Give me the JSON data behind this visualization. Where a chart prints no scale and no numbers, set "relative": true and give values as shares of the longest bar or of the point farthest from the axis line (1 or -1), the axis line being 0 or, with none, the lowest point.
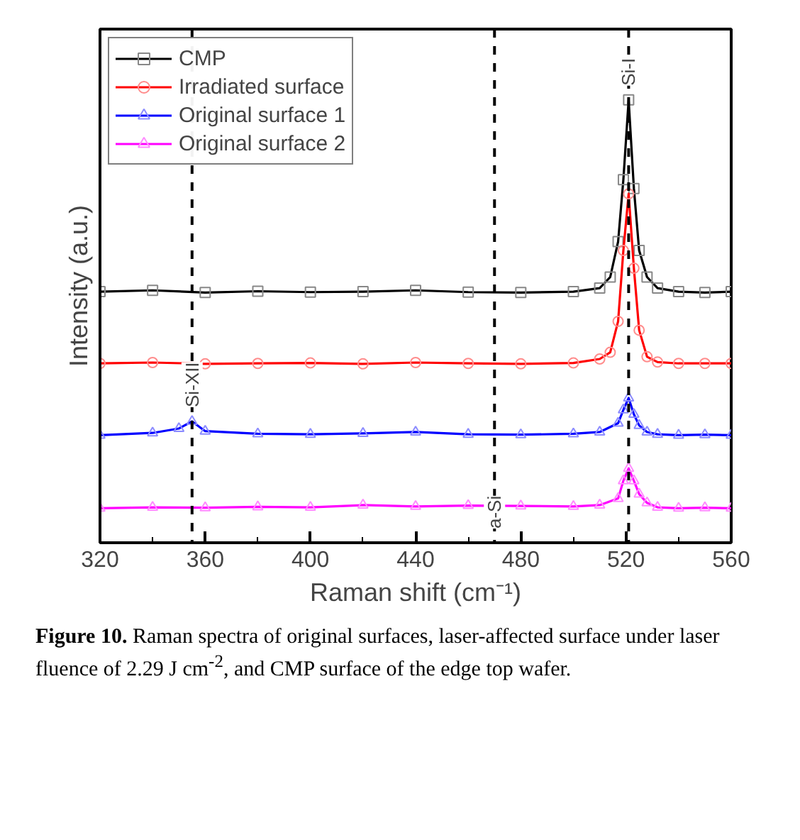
{
  "chart_data": {
    "type": "line",
    "relative": true,
    "xlabel": "Raman shift (cm⁻¹)",
    "ylabel": "Intensity (a.u.)",
    "xlim": [
      320,
      560
    ],
    "xticks": [
      320,
      360,
      400,
      440,
      480,
      520,
      560
    ],
    "grid": false,
    "legend": "top left",
    "line_style": "solid",
    "series": [
      {
        "name": "CMP",
        "color": "#000000",
        "marker": "square",
        "x": [
          320,
          340,
          360,
          380,
          400,
          420,
          440,
          460,
          480,
          500,
          510,
          514,
          517,
          519,
          521,
          523,
          525,
          528,
          532,
          540,
          550,
          560
        ],
        "values": [
          0.567,
          0.57,
          0.565,
          0.568,
          0.566,
          0.567,
          0.57,
          0.566,
          0.565,
          0.567,
          0.575,
          0.6,
          0.68,
          0.82,
          1.0,
          0.8,
          0.66,
          0.6,
          0.575,
          0.567,
          0.565,
          0.567
        ]
      },
      {
        "name": "Irradiated surface",
        "color": "#ff0000",
        "marker": "circle",
        "x": [
          320,
          340,
          360,
          380,
          400,
          420,
          440,
          460,
          480,
          500,
          510,
          514,
          517,
          519,
          521,
          523,
          525,
          528,
          532,
          540,
          550,
          560
        ],
        "values": [
          0.405,
          0.407,
          0.404,
          0.405,
          0.406,
          0.404,
          0.407,
          0.405,
          0.404,
          0.406,
          0.415,
          0.43,
          0.5,
          0.66,
          0.788,
          0.62,
          0.48,
          0.42,
          0.408,
          0.405,
          0.405,
          0.405
        ]
      },
      {
        "name": "Original surface 1",
        "color": "#0000ff",
        "marker": "triangle",
        "x": [
          320,
          340,
          350,
          355,
          360,
          380,
          400,
          420,
          440,
          460,
          480,
          500,
          510,
          517,
          519,
          521,
          523,
          525,
          528,
          532,
          540,
          550,
          560
        ],
        "values": [
          0.243,
          0.248,
          0.258,
          0.274,
          0.252,
          0.246,
          0.245,
          0.247,
          0.25,
          0.245,
          0.244,
          0.246,
          0.25,
          0.27,
          0.3,
          0.327,
          0.29,
          0.265,
          0.25,
          0.245,
          0.243,
          0.244,
          0.243
        ]
      },
      {
        "name": "Original surface 2",
        "color": "#ff00ff",
        "marker": "triangle",
        "x": [
          320,
          340,
          360,
          380,
          400,
          420,
          440,
          460,
          480,
          500,
          510,
          517,
          519,
          521,
          523,
          525,
          528,
          532,
          540,
          550,
          560
        ],
        "values": [
          0.078,
          0.08,
          0.079,
          0.081,
          0.08,
          0.085,
          0.082,
          0.084,
          0.083,
          0.082,
          0.085,
          0.1,
          0.14,
          0.168,
          0.14,
          0.11,
          0.09,
          0.08,
          0.078,
          0.079,
          0.078
        ]
      }
    ],
    "ref_lines": [
      {
        "axis": "x",
        "value": 355,
        "label": "Si-XII",
        "color": "#000000",
        "line_style": "dashed"
      },
      {
        "axis": "x",
        "value": 470,
        "label": "a-Si",
        "color": "#000000",
        "line_style": "dashed"
      },
      {
        "axis": "x",
        "value": 521,
        "label": "Si-I",
        "color": "#000000",
        "line_style": "dashed"
      }
    ],
    "annotations": [
      "Figure 10.",
      "Raman spectra of original surfaces, laser-affected surface under laser fluence of 2.29 J cm$^{-2}$, and CMP surface of the edge top wafer."
    ]
  }
}
